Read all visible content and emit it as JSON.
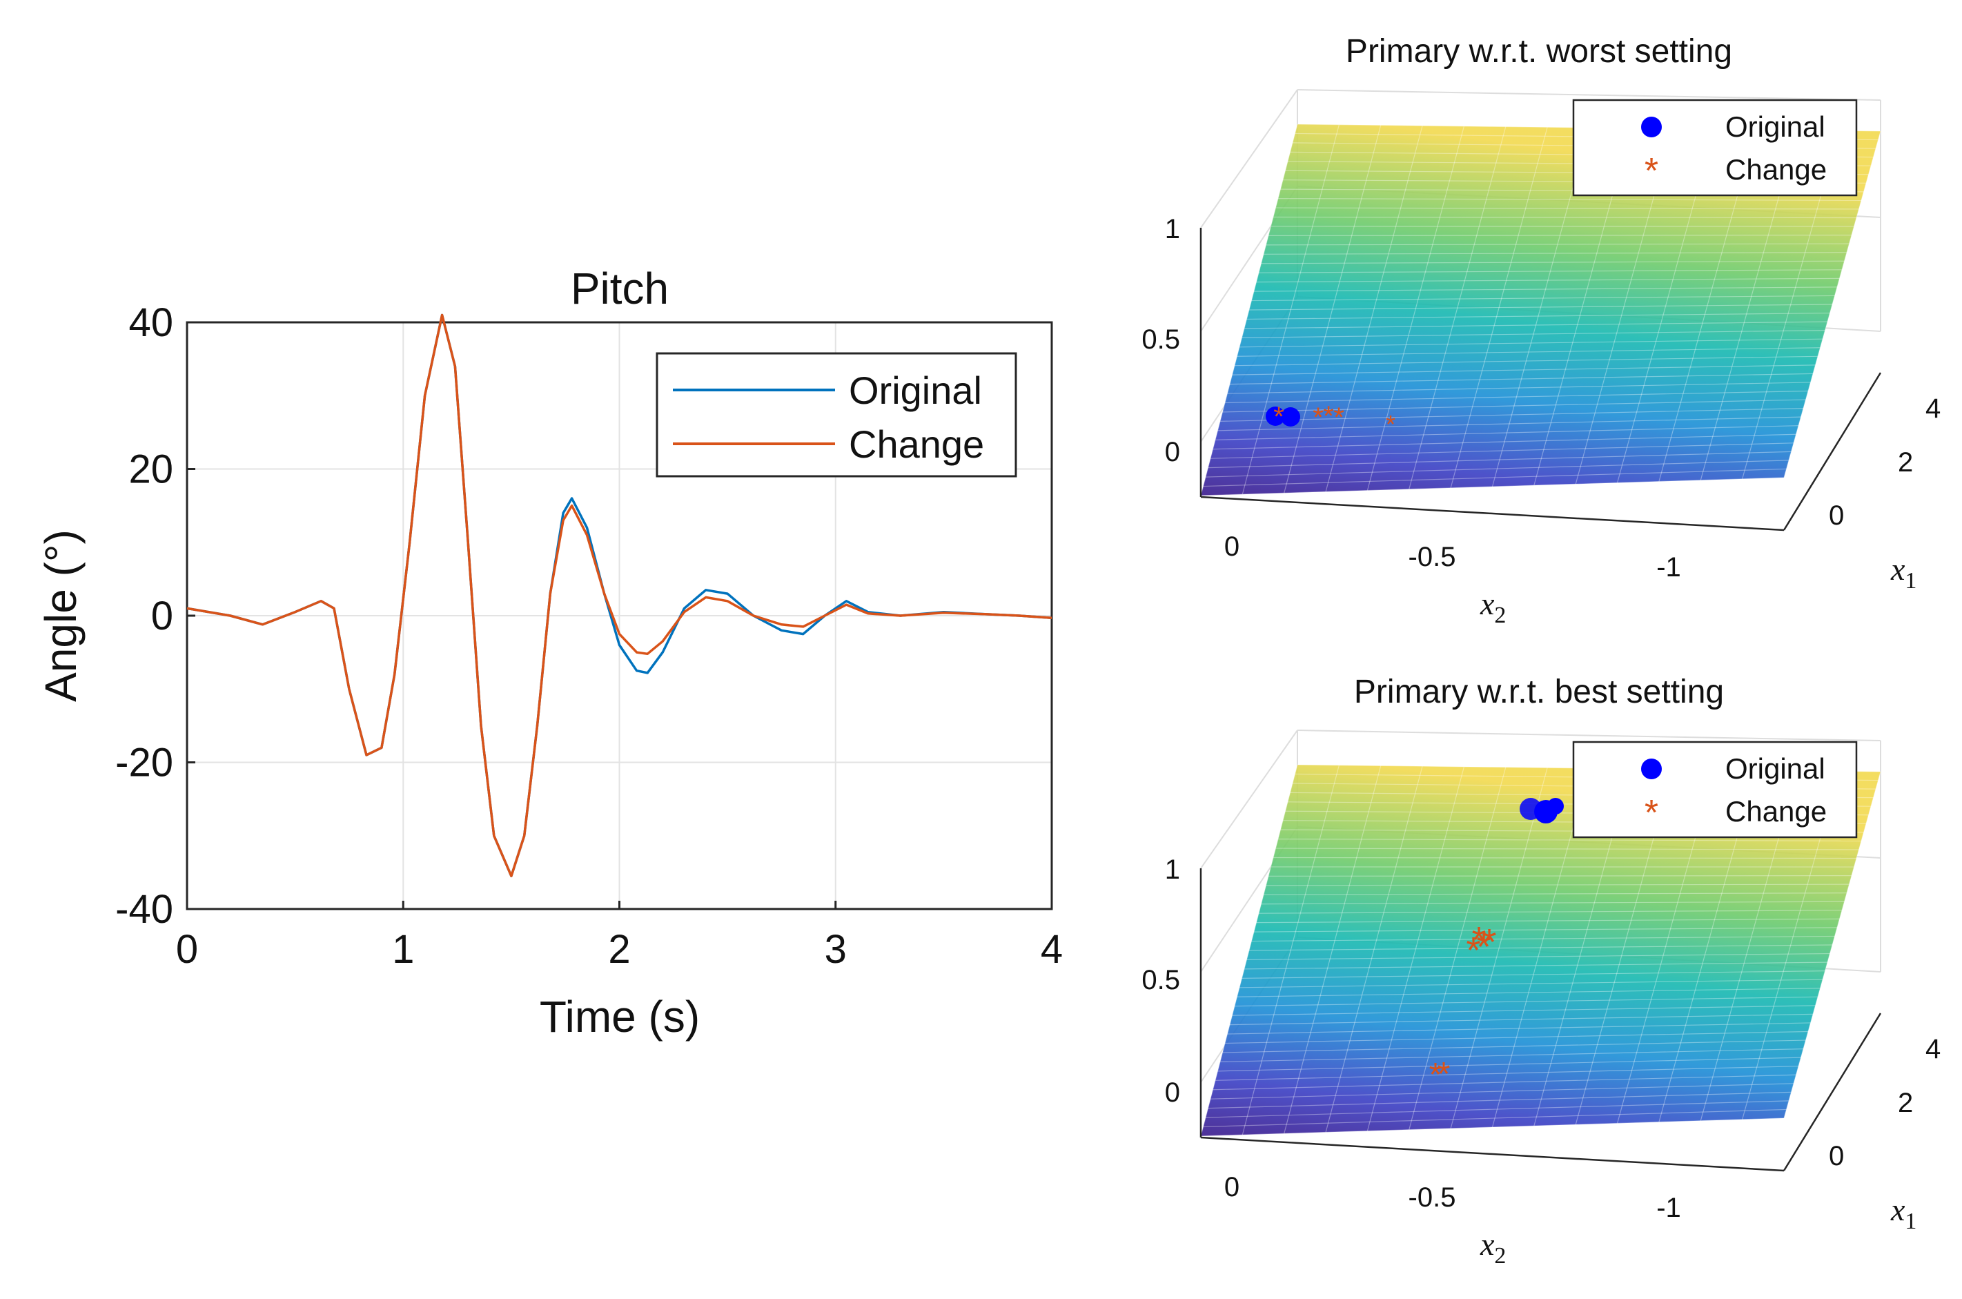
{
  "chart_data": [
    {
      "type": "line",
      "title": "Pitch",
      "xlabel": "Time (s)",
      "ylabel": "Angle (°)",
      "xlim": [
        0,
        4
      ],
      "ylim": [
        -40,
        40
      ],
      "xticks": [
        "0",
        "1",
        "2",
        "3",
        "4"
      ],
      "yticks": [
        "40",
        "20",
        "0",
        "-20",
        "-40"
      ],
      "grid": true,
      "legend_position": "top-right",
      "series": [
        {
          "name": "Original",
          "color": "#0072BD",
          "points": [
            [
              0,
              1
            ],
            [
              0.2,
              0
            ],
            [
              0.35,
              -1.2
            ],
            [
              0.5,
              0.5
            ],
            [
              0.62,
              2
            ],
            [
              0.68,
              1
            ],
            [
              0.75,
              -10
            ],
            [
              0.83,
              -19
            ],
            [
              0.9,
              -18
            ],
            [
              0.96,
              -8
            ],
            [
              1.03,
              10
            ],
            [
              1.1,
              30
            ],
            [
              1.18,
              41
            ],
            [
              1.24,
              34
            ],
            [
              1.3,
              10
            ],
            [
              1.36,
              -15
            ],
            [
              1.42,
              -30
            ],
            [
              1.5,
              -35.5
            ],
            [
              1.56,
              -30
            ],
            [
              1.62,
              -15
            ],
            [
              1.68,
              3
            ],
            [
              1.74,
              14
            ],
            [
              1.78,
              16
            ],
            [
              1.85,
              12
            ],
            [
              1.93,
              3
            ],
            [
              2.0,
              -4
            ],
            [
              2.08,
              -7.5
            ],
            [
              2.13,
              -7.8
            ],
            [
              2.2,
              -5
            ],
            [
              2.3,
              1
            ],
            [
              2.4,
              3.5
            ],
            [
              2.5,
              3
            ],
            [
              2.62,
              0
            ],
            [
              2.75,
              -2
            ],
            [
              2.85,
              -2.5
            ],
            [
              2.95,
              0
            ],
            [
              3.05,
              2
            ],
            [
              3.15,
              0.5
            ],
            [
              3.3,
              0
            ],
            [
              3.5,
              0.5
            ],
            [
              3.7,
              0.2
            ],
            [
              3.85,
              0
            ],
            [
              4,
              -0.3
            ]
          ]
        },
        {
          "name": "Change",
          "color": "#D95319",
          "points": [
            [
              0,
              1
            ],
            [
              0.2,
              0
            ],
            [
              0.35,
              -1.2
            ],
            [
              0.5,
              0.5
            ],
            [
              0.62,
              2
            ],
            [
              0.68,
              1
            ],
            [
              0.75,
              -10
            ],
            [
              0.83,
              -19
            ],
            [
              0.9,
              -18
            ],
            [
              0.96,
              -8
            ],
            [
              1.03,
              10
            ],
            [
              1.1,
              30
            ],
            [
              1.18,
              41
            ],
            [
              1.24,
              34
            ],
            [
              1.3,
              10
            ],
            [
              1.36,
              -15
            ],
            [
              1.42,
              -30
            ],
            [
              1.5,
              -35.5
            ],
            [
              1.56,
              -30
            ],
            [
              1.62,
              -15
            ],
            [
              1.68,
              3
            ],
            [
              1.74,
              13
            ],
            [
              1.78,
              15
            ],
            [
              1.85,
              11
            ],
            [
              1.93,
              3
            ],
            [
              2.0,
              -2.5
            ],
            [
              2.08,
              -5
            ],
            [
              2.13,
              -5.2
            ],
            [
              2.2,
              -3.5
            ],
            [
              2.3,
              0.5
            ],
            [
              2.4,
              2.5
            ],
            [
              2.5,
              2
            ],
            [
              2.62,
              0
            ],
            [
              2.75,
              -1.2
            ],
            [
              2.85,
              -1.5
            ],
            [
              2.95,
              0
            ],
            [
              3.05,
              1.5
            ],
            [
              3.15,
              0.3
            ],
            [
              3.3,
              0
            ],
            [
              3.5,
              0.4
            ],
            [
              3.7,
              0.2
            ],
            [
              3.85,
              0
            ],
            [
              4,
              -0.3
            ]
          ]
        }
      ]
    },
    {
      "type": "surface",
      "title": "Primary w.r.t. worst setting",
      "xlabel": "x",
      "xlabel_sub": "2",
      "ylabel": "x",
      "ylabel_sub": "1",
      "zticks": [
        "1",
        "0.5",
        "0"
      ],
      "x2_ticks": [
        "0",
        "-0.5",
        "-1"
      ],
      "x1_ticks": [
        "4",
        "2",
        "0"
      ],
      "legend": [
        {
          "name": "Original",
          "marker": "circle",
          "color": "#0000FF"
        },
        {
          "name": "Change",
          "marker": "asterisk",
          "color": "#D95319"
        }
      ],
      "original_points": [
        [
          -0.05,
          0.12
        ],
        [
          -0.08,
          0.12
        ]
      ],
      "change_points": [
        [
          -0.12,
          0.13
        ],
        [
          -0.15,
          0.14
        ],
        [
          -0.18,
          0.13
        ],
        [
          -0.35,
          0.11
        ]
      ]
    },
    {
      "type": "surface",
      "title": "Primary w.r.t. best setting",
      "xlabel": "x",
      "xlabel_sub": "2",
      "ylabel": "x",
      "ylabel_sub": "1",
      "zticks": [
        "1",
        "0.5",
        "0"
      ],
      "x2_ticks": [
        "0",
        "-0.5",
        "-1"
      ],
      "x1_ticks": [
        "4",
        "2",
        "0"
      ],
      "legend": [
        {
          "name": "Original",
          "marker": "circle",
          "color": "#0000FF"
        },
        {
          "name": "Change",
          "marker": "asterisk",
          "color": "#D95319"
        }
      ],
      "original_points": [
        [
          -0.72,
          0.98
        ],
        [
          -0.75,
          0.97
        ]
      ],
      "change_points": [
        [
          -0.55,
          0.62
        ],
        [
          -0.58,
          0.64
        ],
        [
          -0.52,
          0.63
        ],
        [
          -0.47,
          0.08
        ]
      ]
    }
  ]
}
